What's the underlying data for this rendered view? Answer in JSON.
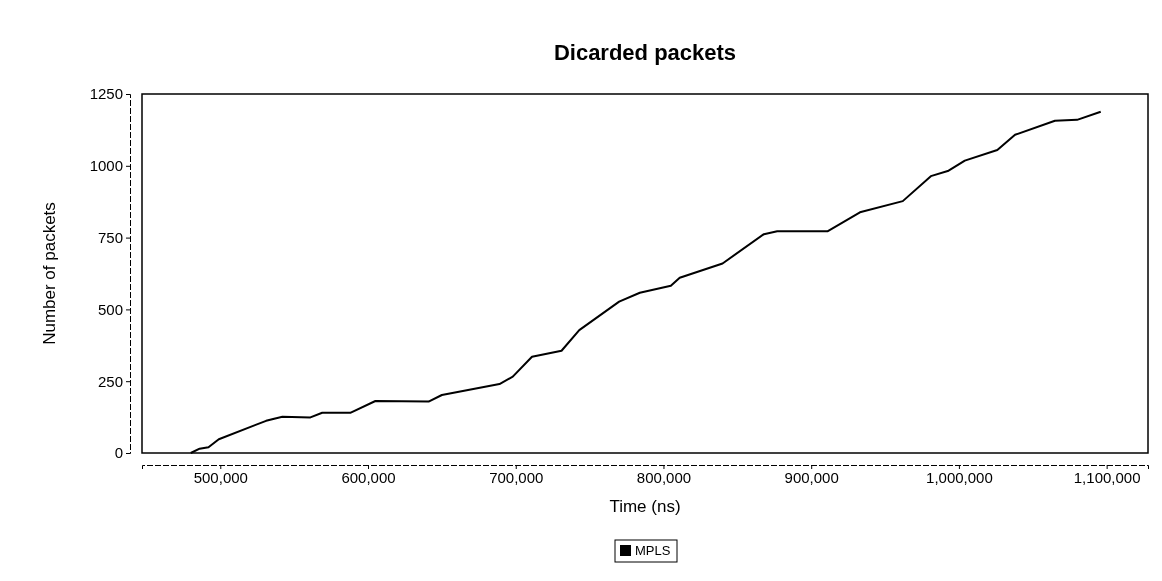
{
  "chart_data": {
    "type": "line",
    "title": "Dicarded packets",
    "xlabel": "Time (ns)",
    "ylabel": "Number of packets",
    "xlim": [
      447000,
      1128000
    ],
    "xticks": [
      {
        "value": 500000,
        "label": "500,000"
      },
      {
        "value": 600000,
        "label": "600,000"
      },
      {
        "value": 700000,
        "label": "700,000"
      },
      {
        "value": 800000,
        "label": "800,000"
      },
      {
        "value": 900000,
        "label": "900,000"
      },
      {
        "value": 1000000,
        "label": "1,000,000"
      },
      {
        "value": 1100000,
        "label": "1,100,000"
      }
    ],
    "ylim": [
      0,
      1250
    ],
    "yticks": [
      0,
      250,
      500,
      750,
      1000,
      1250
    ],
    "grid": false,
    "legend": "bottom",
    "marker": "none",
    "line_style": "solid",
    "x": [
      480000,
      486000,
      492000,
      499000,
      531000,
      542000,
      561000,
      569000,
      588000,
      605000,
      641000,
      650000,
      689000,
      698000,
      711000,
      731000,
      743000,
      770000,
      784000,
      805000,
      811000,
      840000,
      868000,
      877000,
      911000,
      933000,
      962000,
      981000,
      993000,
      1004000,
      1026000,
      1038000,
      1065000,
      1080000,
      1096000
    ],
    "series": [
      {
        "name": "MPLS",
        "color": "#000000",
        "values": [
          0,
          15,
          20,
          48,
          112,
          126,
          124,
          140,
          140,
          181,
          179,
          202,
          240,
          266,
          335,
          356,
          428,
          527,
          558,
          582,
          610,
          660,
          762,
          772,
          772,
          838,
          877,
          964,
          983,
          1018,
          1055,
          1108,
          1157,
          1160,
          1188
        ]
      }
    ]
  }
}
